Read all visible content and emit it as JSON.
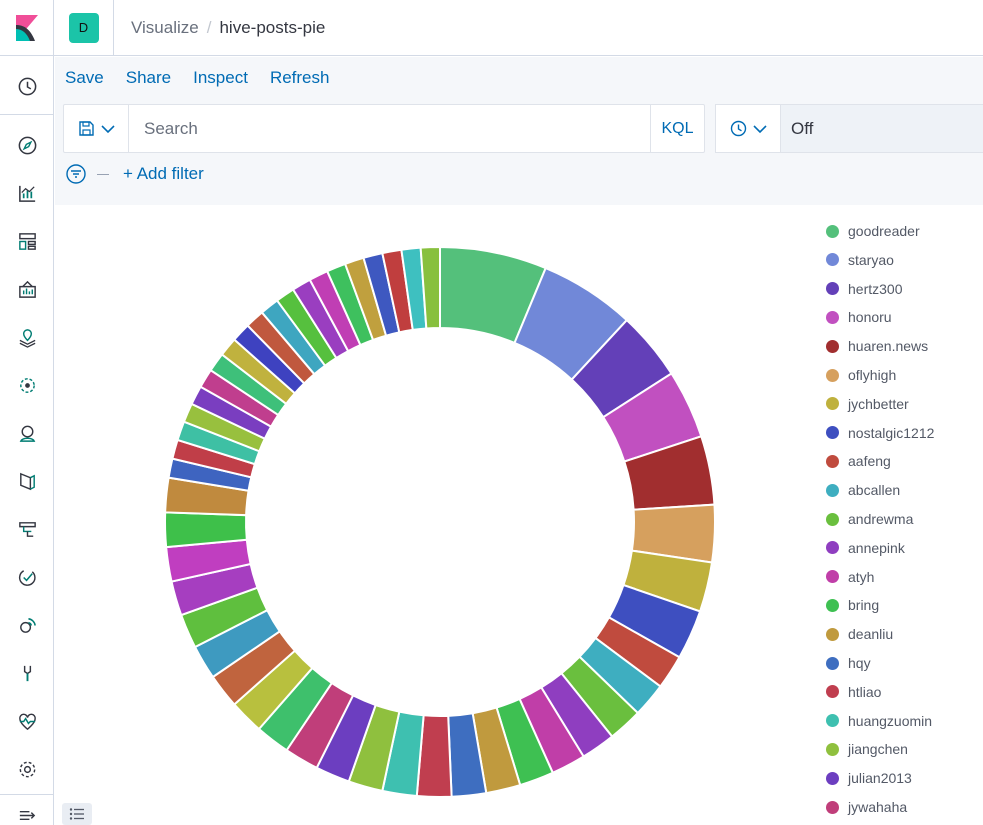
{
  "header": {
    "space_initial": "D",
    "breadcrumb_parent": "Visualize",
    "breadcrumb_current": "hive-posts-pie"
  },
  "menu": {
    "save": "Save",
    "share": "Share",
    "inspect": "Inspect",
    "refresh": "Refresh"
  },
  "query": {
    "placeholder": "Search",
    "language": "KQL"
  },
  "time": {
    "value": "Off"
  },
  "filters": {
    "add_label": "+ Add filter"
  },
  "nav": {
    "icons": [
      "clock-icon",
      "compass-icon",
      "visualize-icon",
      "dashboard-icon",
      "canvas-icon",
      "maps-icon",
      "ml-icon",
      "infrastructure-icon",
      "logs-icon",
      "apm-icon",
      "uptime-icon",
      "siem-icon",
      "dev-tools-icon",
      "stack-monitoring-icon",
      "management-icon",
      "collapse-icon"
    ]
  },
  "legend": {
    "items": [
      {
        "label": "goodreader",
        "color": "#54c07b"
      },
      {
        "label": "staryao",
        "color": "#7188d8"
      },
      {
        "label": "hertz300",
        "color": "#6340b8"
      },
      {
        "label": "honoru",
        "color": "#c150c0"
      },
      {
        "label": "huaren.news",
        "color": "#a12e2f"
      },
      {
        "label": "oflyhigh",
        "color": "#d6a05e"
      },
      {
        "label": "jychbetter",
        "color": "#bfb13d"
      },
      {
        "label": "nostalgic1212",
        "color": "#3e4fc0"
      },
      {
        "label": "aafeng",
        "color": "#c04b3e"
      },
      {
        "label": "abcallen",
        "color": "#3eaec0"
      },
      {
        "label": "andrewma",
        "color": "#6abf3e"
      },
      {
        "label": "annepink",
        "color": "#8f3ec0"
      },
      {
        "label": "atyh",
        "color": "#c03ea8"
      },
      {
        "label": "bring",
        "color": "#3ec052"
      },
      {
        "label": "deanliu",
        "color": "#c09a3e"
      },
      {
        "label": "hqy",
        "color": "#3e6ec0"
      },
      {
        "label": "htliao",
        "color": "#c03e4f"
      },
      {
        "label": "huangzuomin",
        "color": "#3ec0b0"
      },
      {
        "label": "jiangchen",
        "color": "#8fc03e"
      },
      {
        "label": "julian2013",
        "color": "#6c3ec0"
      },
      {
        "label": "jywahaha",
        "color": "#c03e7a"
      }
    ]
  },
  "chart_data": {
    "type": "pie",
    "donut": true,
    "title": "",
    "slices": [
      {
        "label": "goodreader",
        "value": 28,
        "color": "#54c07b"
      },
      {
        "label": "staryao",
        "value": 25,
        "color": "#7188d8"
      },
      {
        "label": "hertz300",
        "value": 18,
        "color": "#6340b8"
      },
      {
        "label": "honoru",
        "value": 18,
        "color": "#c150c0"
      },
      {
        "label": "huaren.news",
        "value": 18,
        "color": "#a12e2f"
      },
      {
        "label": "oflyhigh",
        "value": 15,
        "color": "#d6a05e"
      },
      {
        "label": "jychbetter",
        "value": 13,
        "color": "#bfb13d"
      },
      {
        "label": "nostalgic1212",
        "value": 13,
        "color": "#3e4fc0"
      },
      {
        "label": "aafeng",
        "value": 9,
        "color": "#c04b3e"
      },
      {
        "label": "abcallen",
        "value": 9,
        "color": "#3eaec0"
      },
      {
        "label": "andrewma",
        "value": 9,
        "color": "#6abf3e"
      },
      {
        "label": "annepink",
        "value": 9,
        "color": "#8f3ec0"
      },
      {
        "label": "atyh",
        "value": 9,
        "color": "#c03ea8"
      },
      {
        "label": "bring",
        "value": 9,
        "color": "#3ec052"
      },
      {
        "label": "deanliu",
        "value": 9,
        "color": "#c09a3e"
      },
      {
        "label": "hqy",
        "value": 9,
        "color": "#3e6ec0"
      },
      {
        "label": "htliao",
        "value": 9,
        "color": "#c03e4f"
      },
      {
        "label": "huangzuomin",
        "value": 9,
        "color": "#3ec0b0"
      },
      {
        "label": "jiangchen",
        "value": 9,
        "color": "#8fc03e"
      },
      {
        "label": "julian2013",
        "value": 9,
        "color": "#6c3ec0"
      },
      {
        "label": "jywahaha",
        "value": 9,
        "color": "#c03e7a"
      },
      {
        "label": "",
        "value": 9,
        "color": "#3ec06c"
      },
      {
        "label": "",
        "value": 9,
        "color": "#b8c03e"
      },
      {
        "label": "",
        "value": 9,
        "color": "#c0643e"
      },
      {
        "label": "",
        "value": 9,
        "color": "#3e9ac0"
      },
      {
        "label": "",
        "value": 9,
        "color": "#5fbf3e"
      },
      {
        "label": "",
        "value": 9,
        "color": "#a63ec0"
      },
      {
        "label": "",
        "value": 9,
        "color": "#c03ec0"
      },
      {
        "label": "",
        "value": 9,
        "color": "#3ec04a"
      },
      {
        "label": "",
        "value": 9,
        "color": "#c08a3e"
      },
      {
        "label": "",
        "value": 5,
        "color": "#3e64c0"
      },
      {
        "label": "",
        "value": 5,
        "color": "#c03e48"
      },
      {
        "label": "",
        "value": 5,
        "color": "#3ec0a4"
      },
      {
        "label": "",
        "value": 5,
        "color": "#98c03e"
      },
      {
        "label": "",
        "value": 5,
        "color": "#7a3ec0"
      },
      {
        "label": "",
        "value": 5,
        "color": "#c03e8e"
      },
      {
        "label": "",
        "value": 5,
        "color": "#3ec07a"
      },
      {
        "label": "",
        "value": 5,
        "color": "#c0b23e"
      },
      {
        "label": "",
        "value": 5,
        "color": "#3e42c0"
      },
      {
        "label": "",
        "value": 5,
        "color": "#c0583e"
      },
      {
        "label": "",
        "value": 5,
        "color": "#3ea6c0"
      },
      {
        "label": "",
        "value": 5,
        "color": "#56c03e"
      },
      {
        "label": "",
        "value": 5,
        "color": "#9a3ec0"
      },
      {
        "label": "",
        "value": 5,
        "color": "#c03eb4"
      },
      {
        "label": "",
        "value": 5,
        "color": "#3ec05e"
      },
      {
        "label": "",
        "value": 5,
        "color": "#c0a03e"
      },
      {
        "label": "",
        "value": 5,
        "color": "#3e58c0"
      },
      {
        "label": "",
        "value": 5,
        "color": "#c03e3e"
      },
      {
        "label": "",
        "value": 5,
        "color": "#3ec0c0"
      },
      {
        "label": "",
        "value": 5,
        "color": "#88c03e"
      }
    ]
  }
}
